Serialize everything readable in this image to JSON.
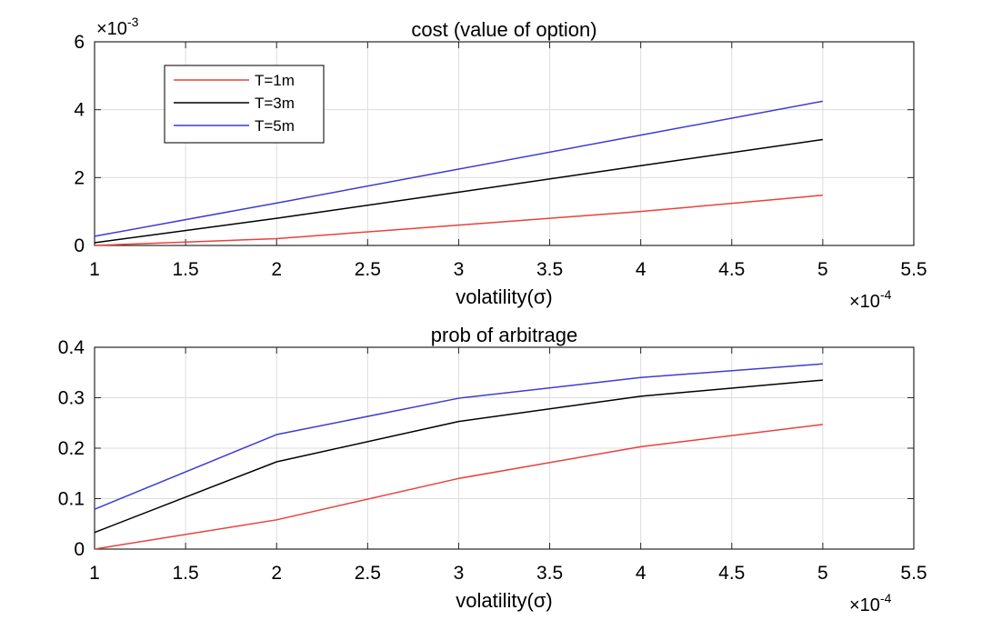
{
  "chart_data": [
    {
      "type": "line",
      "title": "cost (value of option)",
      "xlabel": "volatility(σ)",
      "ylabel": "",
      "x_multiplier": {
        "base": "×10",
        "exp": "-4"
      },
      "y_multiplier": {
        "base": "×10",
        "exp": "-3"
      },
      "xlim": [
        1,
        5.5
      ],
      "ylim": [
        0,
        6
      ],
      "xticks": [
        1,
        1.5,
        2,
        2.5,
        3,
        3.5,
        4,
        4.5,
        5,
        5.5
      ],
      "yticks": [
        0,
        2,
        4,
        6
      ],
      "xtick_labels": [
        "1",
        "1.5",
        "2",
        "2.5",
        "3",
        "3.5",
        "4",
        "4.5",
        "5",
        "5.5"
      ],
      "ytick_labels": [
        "0",
        "2",
        "4",
        "6"
      ],
      "grid": true,
      "legend_position": "top-left",
      "x": [
        1,
        2,
        3,
        4,
        5
      ],
      "series": [
        {
          "name": "T=1m",
          "color": "#e8413c",
          "values": [
            0.0,
            0.2,
            0.6,
            1.0,
            1.48
          ]
        },
        {
          "name": "T=3m",
          "color": "#000000",
          "values": [
            0.08,
            0.8,
            1.57,
            2.35,
            3.12
          ]
        },
        {
          "name": "T=5m",
          "color": "#3c3cd0",
          "values": [
            0.27,
            1.25,
            2.25,
            3.25,
            4.25
          ]
        }
      ]
    },
    {
      "type": "line",
      "title": "prob of arbitrage",
      "xlabel": "volatility(σ)",
      "ylabel": "",
      "x_multiplier": {
        "base": "×10",
        "exp": "-4"
      },
      "xlim": [
        1,
        5.5
      ],
      "ylim": [
        0,
        0.4
      ],
      "xticks": [
        1,
        1.5,
        2,
        2.5,
        3,
        3.5,
        4,
        4.5,
        5,
        5.5
      ],
      "yticks": [
        0,
        0.1,
        0.2,
        0.3,
        0.4
      ],
      "xtick_labels": [
        "1",
        "1.5",
        "2",
        "2.5",
        "3",
        "3.5",
        "4",
        "4.5",
        "5",
        "5.5"
      ],
      "ytick_labels": [
        "0",
        "0.1",
        "0.2",
        "0.3",
        "0.4"
      ],
      "grid": true,
      "legend_position": "none",
      "x": [
        1,
        2,
        3,
        4,
        5
      ],
      "series": [
        {
          "color": "#e8413c",
          "values": [
            0.0,
            0.058,
            0.14,
            0.203,
            0.247
          ]
        },
        {
          "color": "#000000",
          "values": [
            0.033,
            0.173,
            0.253,
            0.303,
            0.335
          ]
        },
        {
          "color": "#3c3cd0",
          "values": [
            0.079,
            0.227,
            0.299,
            0.34,
            0.367
          ]
        }
      ]
    }
  ]
}
